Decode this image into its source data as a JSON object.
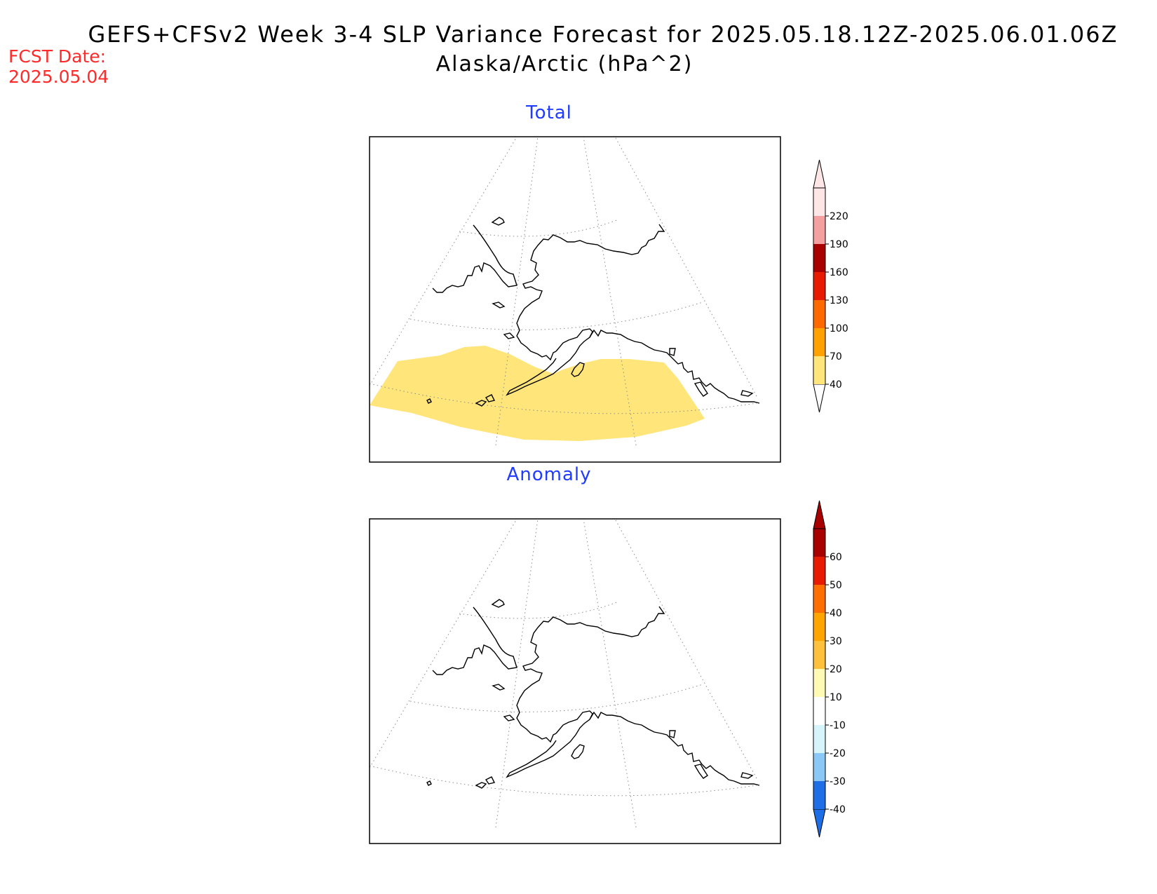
{
  "header": {
    "title": "GEFS+CFSv2 Week 3-4 SLP Variance Forecast for 2025.05.18.12Z-2025.06.01.06Z",
    "subtitle": "Alaska/Arctic (hPa^2)",
    "fcst_label": "FCST Date:",
    "fcst_date": "2025.05.04"
  },
  "panels": [
    {
      "title": "Total",
      "colorbar": {
        "labels": [
          "40",
          "70",
          "100",
          "130",
          "160",
          "190",
          "220"
        ],
        "colors": [
          "#ffe57a",
          "#ffa200",
          "#ff6a00",
          "#e61b00",
          "#a80000",
          "#f4a0a0",
          "#ffe6e6"
        ],
        "extend_low_color": "#ffffff",
        "extend_high_color": "#ffe6e6"
      },
      "field_color": "#ffe57a"
    },
    {
      "title": "Anomaly",
      "colorbar": {
        "labels": [
          "-40",
          "-30",
          "-20",
          "-10",
          "10",
          "20",
          "30",
          "40",
          "50",
          "60"
        ],
        "colors": [
          "#1e6ee6",
          "#8cc8f5",
          "#d6f5fa",
          "#ffffff",
          "#fffab4",
          "#ffc03c",
          "#ffa500",
          "#ff6e00",
          "#e61b00",
          "#a80000"
        ],
        "extend_low_color": "#1e6ee6",
        "extend_high_color": "#a80000"
      }
    }
  ]
}
